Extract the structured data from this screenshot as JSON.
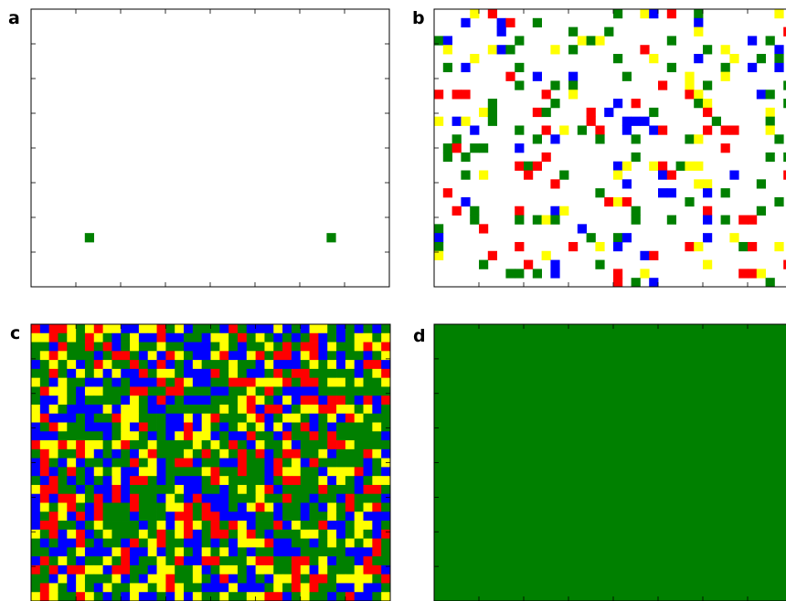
{
  "figure": {
    "panel_labels": [
      "a",
      "b",
      "c",
      "d"
    ]
  },
  "chart_data": [
    {
      "type": "heatmap",
      "panel": "a",
      "grid_size": [
        40,
        31
      ],
      "palette": {
        "0": "#ffffff",
        "1": "#ff0000",
        "2": "#0000ff",
        "3": "#008000",
        "4": "#ffff00"
      },
      "background_state": 0,
      "cells": [
        {
          "col": 6,
          "row": 25,
          "state": 3
        },
        {
          "col": 33,
          "row": 25,
          "state": 3
        }
      ],
      "grid": false
    },
    {
      "type": "heatmap",
      "panel": "b",
      "grid_size": [
        40,
        31
      ],
      "palette": {
        "0": "#ffffff",
        "1": "#ff0000",
        "2": "#0000ff",
        "3": "#008000",
        "4": "#ffff00"
      },
      "background_state": 0,
      "occupied_fraction": 0.18,
      "state_weights": {
        "1": 0.22,
        "2": 0.24,
        "3": 0.36,
        "4": 0.18
      },
      "seed": 7,
      "grid": false
    },
    {
      "type": "heatmap",
      "panel": "c",
      "grid_size": [
        40,
        31
      ],
      "palette": {
        "0": "#ffffff",
        "1": "#ff0000",
        "2": "#0000ff",
        "3": "#008000",
        "4": "#ffff00"
      },
      "background_state": 0,
      "occupied_fraction": 1.0,
      "state_weights": {
        "1": 0.17,
        "2": 0.25,
        "3": 0.38,
        "4": 0.2
      },
      "seed": 42,
      "grid": false
    },
    {
      "type": "heatmap",
      "panel": "d",
      "grid_size": [
        40,
        31
      ],
      "palette": {
        "0": "#ffffff",
        "1": "#ff0000",
        "2": "#0000ff",
        "3": "#008000",
        "4": "#ffff00"
      },
      "background_state": 3,
      "occupied_fraction": 0,
      "grid": false
    }
  ]
}
